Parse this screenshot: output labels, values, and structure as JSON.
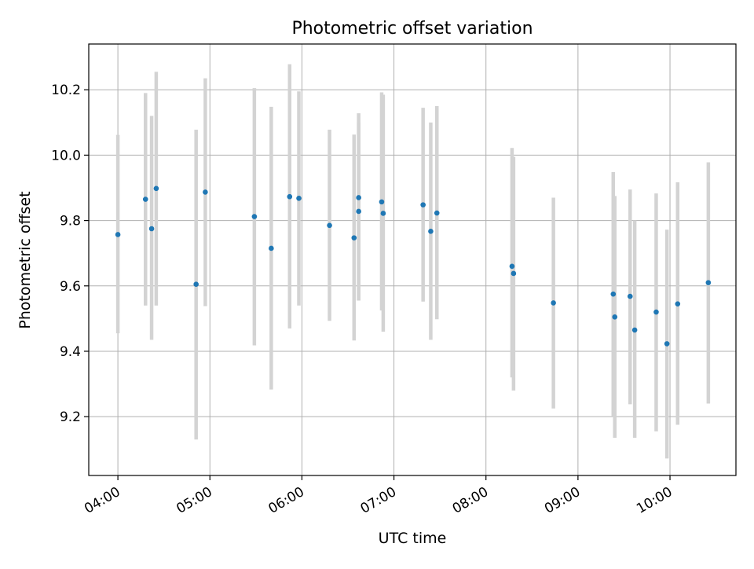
{
  "chart_data": {
    "type": "scatter",
    "title": "Photometric offset variation",
    "xlabel": "UTC time",
    "ylabel": "Photometric offset",
    "x_ticks": [
      "04:00",
      "05:00",
      "06:00",
      "07:00",
      "08:00",
      "09:00",
      "10:00"
    ],
    "y_ticks": [
      "9.2",
      "9.4",
      "9.6",
      "9.8",
      "10.0",
      "10.2"
    ],
    "y_tick_values": [
      9.2,
      9.4,
      9.6,
      9.8,
      10.0,
      10.2
    ],
    "xlim": [
      "03:41",
      "10:43"
    ],
    "ylim": [
      9.02,
      10.34
    ],
    "grid": true,
    "point_color": "#1f77b4",
    "errorbar_color": "#d3d3d3",
    "series": [
      {
        "points": [
          {
            "x": "04:00",
            "y": 9.757,
            "ylow": 9.455,
            "yhigh": 10.062
          },
          {
            "x": "04:18",
            "y": 9.865,
            "ylow": 9.54,
            "yhigh": 10.19
          },
          {
            "x": "04:22",
            "y": 9.775,
            "ylow": 9.435,
            "yhigh": 10.12
          },
          {
            "x": "04:25",
            "y": 9.898,
            "ylow": 9.54,
            "yhigh": 10.255
          },
          {
            "x": "04:51",
            "y": 9.605,
            "ylow": 9.13,
            "yhigh": 10.078
          },
          {
            "x": "04:57",
            "y": 9.887,
            "ylow": 9.538,
            "yhigh": 10.235
          },
          {
            "x": "05:29",
            "y": 9.812,
            "ylow": 9.418,
            "yhigh": 10.205
          },
          {
            "x": "05:40",
            "y": 9.715,
            "ylow": 9.283,
            "yhigh": 10.148
          },
          {
            "x": "05:52",
            "y": 9.873,
            "ylow": 9.47,
            "yhigh": 10.278
          },
          {
            "x": "05:58",
            "y": 9.868,
            "ylow": 9.54,
            "yhigh": 10.195
          },
          {
            "x": "06:18",
            "y": 9.785,
            "ylow": 9.493,
            "yhigh": 10.078
          },
          {
            "x": "06:34",
            "y": 9.747,
            "ylow": 9.433,
            "yhigh": 10.063
          },
          {
            "x": "06:37",
            "y": 9.87,
            "ylow": 9.555,
            "yhigh": 10.128
          },
          {
            "x": "06:37",
            "y": 9.828,
            "ylow": 9.555,
            "yhigh": 10.1
          },
          {
            "x": "06:52",
            "y": 9.857,
            "ylow": 9.525,
            "yhigh": 10.192
          },
          {
            "x": "06:53",
            "y": 9.822,
            "ylow": 9.46,
            "yhigh": 10.185
          },
          {
            "x": "07:19",
            "y": 9.848,
            "ylow": 9.552,
            "yhigh": 10.145
          },
          {
            "x": "07:24",
            "y": 9.767,
            "ylow": 9.435,
            "yhigh": 10.1
          },
          {
            "x": "07:28",
            "y": 9.823,
            "ylow": 9.498,
            "yhigh": 10.15
          },
          {
            "x": "08:17",
            "y": 9.66,
            "ylow": 9.32,
            "yhigh": 10.022
          },
          {
            "x": "08:18",
            "y": 9.638,
            "ylow": 9.28,
            "yhigh": 9.995
          },
          {
            "x": "08:44",
            "y": 9.548,
            "ylow": 9.225,
            "yhigh": 9.87
          },
          {
            "x": "09:23",
            "y": 9.575,
            "ylow": 9.2,
            "yhigh": 9.948
          },
          {
            "x": "09:24",
            "y": 9.505,
            "ylow": 9.135,
            "yhigh": 9.875
          },
          {
            "x": "09:34",
            "y": 9.568,
            "ylow": 9.238,
            "yhigh": 9.895
          },
          {
            "x": "09:37",
            "y": 9.465,
            "ylow": 9.135,
            "yhigh": 9.8
          },
          {
            "x": "09:51",
            "y": 9.52,
            "ylow": 9.155,
            "yhigh": 9.883
          },
          {
            "x": "09:58",
            "y": 9.423,
            "ylow": 9.072,
            "yhigh": 9.772
          },
          {
            "x": "10:05",
            "y": 9.545,
            "ylow": 9.175,
            "yhigh": 9.917
          },
          {
            "x": "10:25",
            "y": 9.61,
            "ylow": 9.24,
            "yhigh": 9.978
          }
        ]
      }
    ]
  }
}
